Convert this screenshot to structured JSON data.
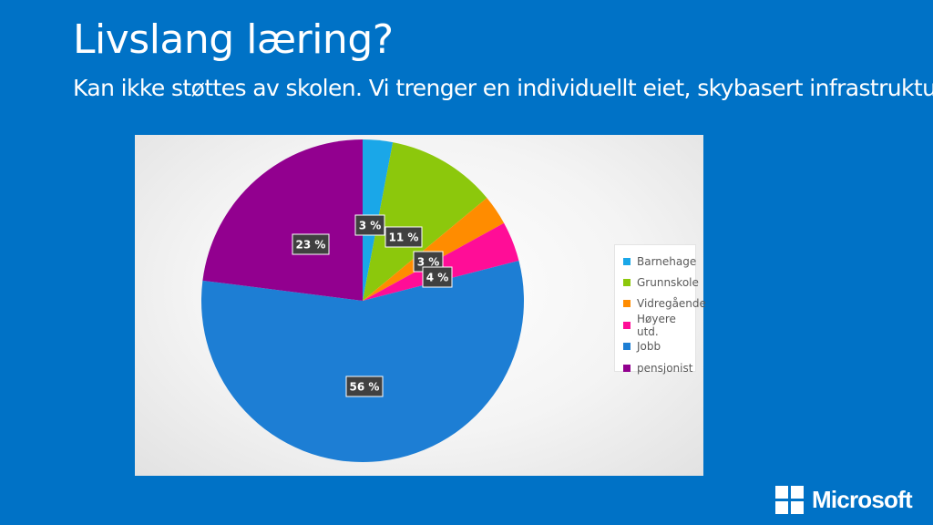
{
  "slide": {
    "title": "Livslang læring?",
    "subtitle": "Kan ikke støttes av skolen. Vi trenger en individuellt eiet, skybasert infrastruktur!"
  },
  "chart_data": {
    "type": "pie",
    "labels": [
      "Barnehage",
      "Grunnskole",
      "Vidregående",
      "Høyere utd.",
      "Jobb",
      "pensjonist"
    ],
    "values": [
      3,
      11,
      3,
      4,
      56,
      23
    ],
    "data_labels": [
      "3 %",
      "11 %",
      "3 %",
      "4 %",
      "56 %",
      "23 %"
    ],
    "colors": [
      "#1aa7e8",
      "#8cc80c",
      "#ff8c00",
      "#ff0d97",
      "#1d7ed4",
      "#92008f"
    ],
    "legend_position": "right"
  },
  "logo": {
    "text": "Microsoft",
    "icon": "windows-logo-icon"
  }
}
